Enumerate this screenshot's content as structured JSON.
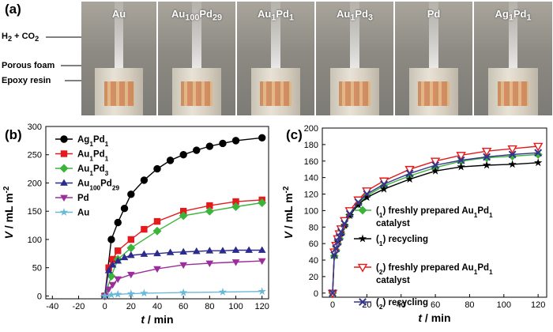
{
  "panel_a": {
    "letter": "(a)",
    "photo_labels": [
      "Au",
      "Au100Pd29",
      "Au1Pd1",
      "Au1Pd3",
      "Pd",
      "Ag1Pd1"
    ],
    "callouts": [
      "H2 + CO2",
      "Porous foam",
      "Epoxy resin"
    ]
  },
  "chart_data": [
    {
      "type": "line",
      "panel": "(b)",
      "xlabel": "t / min",
      "ylabel": "V / mL m-2",
      "xlim": [
        -45,
        125
      ],
      "ylim": [
        -5,
        300
      ],
      "xticks": [
        -40,
        -20,
        0,
        20,
        40,
        60,
        80,
        100,
        120
      ],
      "yticks": [
        0,
        50,
        100,
        150,
        200,
        250,
        300
      ],
      "legend_position": "top-left",
      "series": [
        {
          "name": "Ag1Pd1",
          "color": "#000000",
          "marker": "circle",
          "x": [
            0,
            5,
            10,
            15,
            20,
            30,
            40,
            50,
            60,
            70,
            80,
            90,
            100,
            120
          ],
          "y": [
            0,
            100,
            130,
            155,
            180,
            205,
            225,
            240,
            250,
            258,
            265,
            270,
            275,
            280
          ]
        },
        {
          "name": "Au1Pd1",
          "color": "#e41a1c",
          "marker": "square",
          "x": [
            0,
            3,
            6,
            10,
            20,
            30,
            40,
            60,
            80,
            100,
            120
          ],
          "y": [
            0,
            50,
            65,
            80,
            100,
            118,
            132,
            150,
            160,
            167,
            170
          ]
        },
        {
          "name": "Au1Pd3",
          "color": "#3cb43c",
          "marker": "diamond",
          "x": [
            0,
            5,
            10,
            20,
            40,
            60,
            80,
            100,
            120
          ],
          "y": [
            0,
            35,
            65,
            85,
            115,
            142,
            150,
            158,
            165
          ]
        },
        {
          "name": "Au100Pd29",
          "color": "#2b2b8c",
          "marker": "triangle-up",
          "x": [
            0,
            3,
            6,
            10,
            15,
            20,
            30,
            40,
            50,
            60,
            70,
            80,
            90,
            100,
            110,
            120
          ],
          "y": [
            0,
            45,
            55,
            62,
            68,
            72,
            74,
            75,
            77,
            78,
            79,
            80,
            80,
            81,
            81,
            81
          ]
        },
        {
          "name": "Pd",
          "color": "#9c2e9c",
          "marker": "triangle-down",
          "x": [
            0,
            3,
            6,
            10,
            20,
            40,
            60,
            80,
            100,
            120
          ],
          "y": [
            0,
            12,
            20,
            30,
            38,
            48,
            55,
            58,
            60,
            62
          ]
        },
        {
          "name": "Au",
          "color": "#6ab8d8",
          "marker": "star",
          "x": [
            0,
            5,
            10,
            20,
            30,
            60,
            90,
            120
          ],
          "y": [
            0,
            2,
            3,
            4,
            5,
            6,
            7,
            8
          ]
        }
      ]
    },
    {
      "type": "line",
      "panel": "(c)",
      "xlabel": "t / min",
      "ylabel": "V / mL m-2",
      "xlim": [
        -6,
        125
      ],
      "ylim": [
        -5,
        200
      ],
      "xticks": [
        0,
        20,
        40,
        60,
        80,
        100,
        120
      ],
      "yticks": [
        0,
        20,
        40,
        60,
        80,
        100,
        120,
        140,
        160,
        180,
        200
      ],
      "legend_position": "center-right",
      "series": [
        {
          "name": "(1) freshly prepared Au1Pd1 catalyst",
          "color": "#3cb43c",
          "marker": "diamond",
          "x": [
            0,
            1,
            2,
            3,
            4,
            5,
            7,
            10,
            15,
            20,
            30,
            45,
            60,
            75,
            90,
            105,
            120
          ],
          "y": [
            0,
            45,
            52,
            60,
            66,
            72,
            82,
            95,
            108,
            118,
            130,
            142,
            152,
            160,
            164,
            166,
            168
          ]
        },
        {
          "name": "(1) recycling",
          "color": "#000000",
          "marker": "star",
          "x": [
            0,
            1,
            2,
            3,
            4,
            5,
            7,
            10,
            15,
            20,
            30,
            45,
            60,
            75,
            90,
            105,
            120
          ],
          "y": [
            0,
            48,
            55,
            62,
            68,
            73,
            82,
            94,
            107,
            116,
            126,
            138,
            148,
            153,
            155,
            156,
            158
          ]
        },
        {
          "name": "(2) freshly prepared Au1Pd1 catalyst",
          "color": "#e41a1c",
          "marker": "triangle-down-open",
          "x": [
            0,
            1,
            2,
            3,
            4,
            5,
            7,
            10,
            15,
            20,
            30,
            45,
            60,
            75,
            90,
            105,
            120
          ],
          "y": [
            0,
            50,
            58,
            66,
            72,
            78,
            88,
            100,
            113,
            124,
            136,
            150,
            160,
            167,
            172,
            175,
            178
          ]
        },
        {
          "name": "(2) recycling",
          "color": "#34348c",
          "marker": "x",
          "x": [
            0,
            1,
            2,
            3,
            4,
            5,
            7,
            10,
            15,
            20,
            30,
            45,
            60,
            75,
            90,
            105,
            120
          ],
          "y": [
            0,
            46,
            54,
            62,
            68,
            74,
            84,
            96,
            110,
            120,
            132,
            145,
            155,
            161,
            165,
            168,
            170
          ]
        }
      ]
    }
  ]
}
